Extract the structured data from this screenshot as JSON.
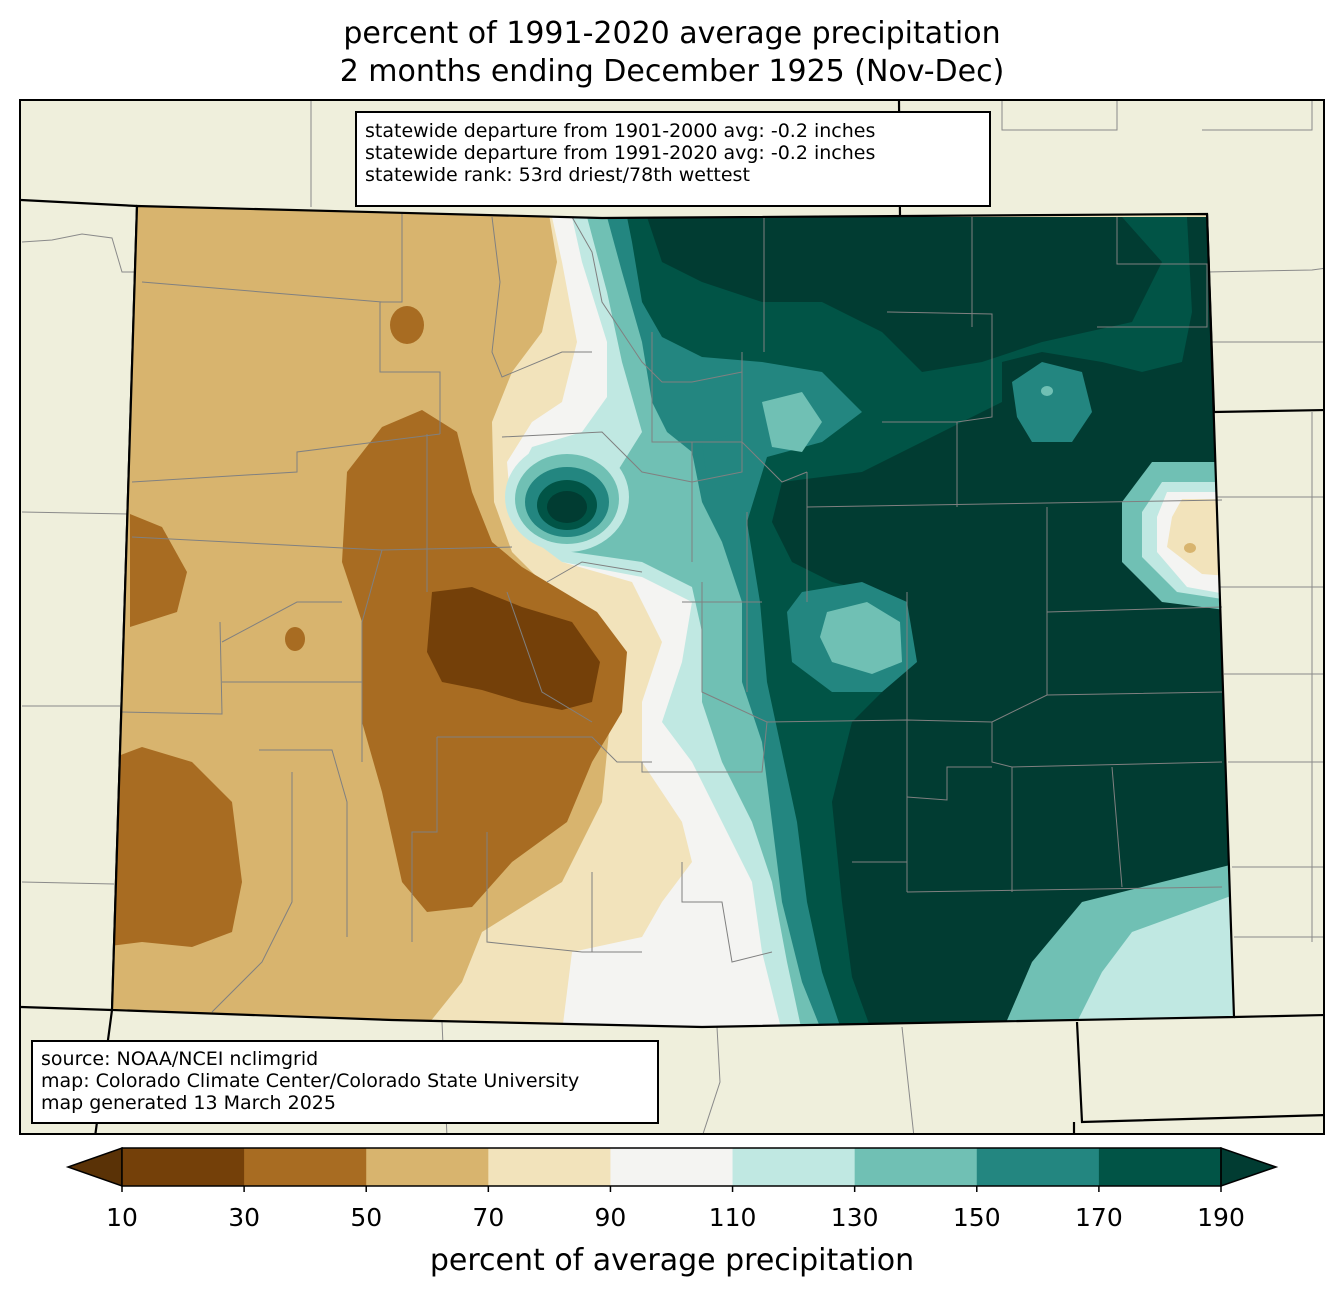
{
  "title": {
    "line1": "percent of 1991-2020 average precipitation",
    "line2": "2 months ending December 1925 (Nov-Dec)"
  },
  "stats": {
    "line1": "statewide departure from 1901-2000 avg: -0.2 inches",
    "line2": "statewide departure from 1991-2020 avg: -0.2 inches",
    "line3": "statewide rank: 53rd driest/78th wettest"
  },
  "source": {
    "line1": "source: NOAA/NCEI nclimgrid",
    "line2": "map: Colorado Climate Center/Colorado State University",
    "line3": "map generated 13 March 2025"
  },
  "colorbar": {
    "label": "percent of average precipitation",
    "ticks": [
      "10",
      "30",
      "50",
      "70",
      "90",
      "110",
      "130",
      "150",
      "170",
      "190"
    ],
    "colors": [
      "#5a3206",
      "#744009",
      "#a86c22",
      "#d8b46e",
      "#f2e3bb",
      "#f4f4f2",
      "#c0e8e2",
      "#70c0b4",
      "#238680",
      "#015446",
      "#013c32"
    ]
  },
  "map_colors": {
    "land": "#efefdc",
    "c10_30": "#744009",
    "c30_50": "#a86c22",
    "c50_70": "#d8b46e",
    "c70_90": "#f2e3bb",
    "c90_110": "#f4f4f2",
    "c110_130": "#c0e8e2",
    "c130_150": "#70c0b4",
    "c150_170": "#238680",
    "c170_190": "#015446",
    "c190_plus": "#013c32"
  }
}
